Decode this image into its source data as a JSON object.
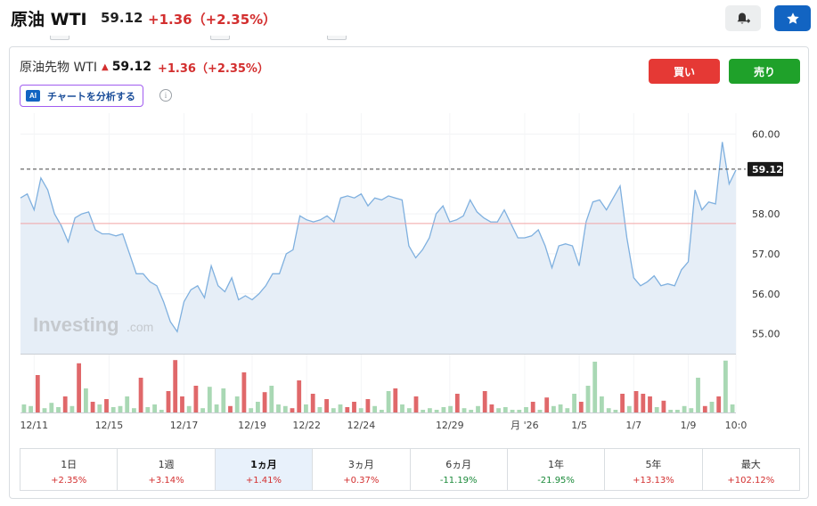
{
  "header": {
    "title": "原油 WTI",
    "price": "59.12",
    "change": "+1.36（+2.35%）"
  },
  "card": {
    "instrument_name": "原油先物 WTI",
    "price": "59.12",
    "change": "+1.36（+2.35%）",
    "ai_badge": "AI",
    "ai_button_label": "チャートを分析する",
    "info_glyph": "i",
    "buy_label": "買い",
    "sell_label": "売り"
  },
  "icons": [
    "bell-plus-icon",
    "star-icon",
    "arrow-up-icon",
    "info-icon",
    "ai-icon"
  ],
  "colors": {
    "buy": "#e53935",
    "sell": "#1fa12a",
    "positive": "#d32f2f",
    "negative": "#1b8a3a",
    "accent": "#1264c2",
    "price_line": "#7fb0df",
    "area_fill": "#e6eef7",
    "volume_up": "#a9d8b4",
    "volume_down": "#e0686a"
  },
  "watermark": {
    "brand": "Investing",
    "suffix": ".com"
  },
  "periods": [
    {
      "label": "1日",
      "change": "+2.35%",
      "direction": "up",
      "active": false
    },
    {
      "label": "1週",
      "change": "+3.14%",
      "direction": "up",
      "active": false
    },
    {
      "label": "1ヵ月",
      "change": "+1.41%",
      "direction": "up",
      "active": true
    },
    {
      "label": "3ヵ月",
      "change": "+0.37%",
      "direction": "up",
      "active": false
    },
    {
      "label": "6ヵ月",
      "change": "-11.19%",
      "direction": "down",
      "active": false
    },
    {
      "label": "1年",
      "change": "-21.95%",
      "direction": "down",
      "active": false
    },
    {
      "label": "5年",
      "change": "+13.13%",
      "direction": "up",
      "active": false
    },
    {
      "label": "最大",
      "change": "+102.12%",
      "direction": "up",
      "active": false
    }
  ],
  "chart_data": {
    "type": "area",
    "x_tick_labels": [
      "12/11",
      "12/15",
      "12/17",
      "12/19",
      "12/22",
      "12/24",
      "12/29",
      "月 '26",
      "1/5",
      "1/7",
      "1/9",
      "10:0"
    ],
    "y_tick_labels": [
      "60.00",
      "59.12",
      "58.00",
      "57.00",
      "56.00",
      "55.00"
    ],
    "y_ticks": [
      60,
      58,
      57,
      56,
      55
    ],
    "ylim": [
      54.5,
      60.3
    ],
    "last_price": 59.12,
    "last_price_label": "59.12",
    "reference_price": 57.76,
    "grid": true,
    "series": [
      {
        "values": [
          58.4,
          58.5,
          58.1,
          58.9,
          58.6,
          58.0,
          57.7,
          57.3,
          57.9,
          58.0,
          58.05,
          57.6,
          57.5,
          57.5,
          57.45,
          57.5,
          57.0,
          56.5,
          56.5,
          56.3,
          56.2,
          55.8,
          55.3,
          55.05,
          55.8,
          56.1,
          56.2,
          55.9,
          56.7,
          56.2,
          56.05,
          56.4,
          55.85,
          55.95,
          55.85,
          56.0,
          56.2,
          56.5,
          56.5,
          57.0,
          57.1,
          57.95,
          57.85,
          57.8,
          57.85,
          57.95,
          57.8,
          58.4,
          58.45,
          58.4,
          58.5,
          58.2,
          58.4,
          58.35,
          58.45,
          58.4,
          58.35,
          57.2,
          56.9,
          57.1,
          57.4,
          58.0,
          58.2,
          57.8,
          57.85,
          57.95,
          58.35,
          58.05,
          57.9,
          57.8,
          57.8,
          58.1,
          57.75,
          57.4,
          57.4,
          57.45,
          57.6,
          57.2,
          56.65,
          57.2,
          57.25,
          57.2,
          56.7,
          57.8,
          58.3,
          58.35,
          58.1,
          58.4,
          58.7,
          57.4,
          56.4,
          56.2,
          56.3,
          56.45,
          56.2,
          56.25,
          56.2,
          56.6,
          56.8,
          58.6,
          58.1,
          58.3,
          58.25,
          59.8,
          58.75,
          59.1
        ]
      }
    ],
    "volume": [
      {
        "v": 0.15,
        "dir": "up"
      },
      {
        "v": 0.12,
        "dir": "up"
      },
      {
        "v": 0.7,
        "dir": "down"
      },
      {
        "v": 0.08,
        "dir": "up"
      },
      {
        "v": 0.18,
        "dir": "up"
      },
      {
        "v": 0.1,
        "dir": "up"
      },
      {
        "v": 0.3,
        "dir": "down"
      },
      {
        "v": 0.12,
        "dir": "up"
      },
      {
        "v": 0.92,
        "dir": "down"
      },
      {
        "v": 0.45,
        "dir": "up"
      },
      {
        "v": 0.2,
        "dir": "down"
      },
      {
        "v": 0.15,
        "dir": "up"
      },
      {
        "v": 0.25,
        "dir": "down"
      },
      {
        "v": 0.1,
        "dir": "up"
      },
      {
        "v": 0.12,
        "dir": "up"
      },
      {
        "v": 0.3,
        "dir": "up"
      },
      {
        "v": 0.08,
        "dir": "up"
      },
      {
        "v": 0.65,
        "dir": "down"
      },
      {
        "v": 0.1,
        "dir": "up"
      },
      {
        "v": 0.15,
        "dir": "up"
      },
      {
        "v": 0.05,
        "dir": "up"
      },
      {
        "v": 0.4,
        "dir": "down"
      },
      {
        "v": 0.98,
        "dir": "down"
      },
      {
        "v": 0.3,
        "dir": "down"
      },
      {
        "v": 0.12,
        "dir": "up"
      },
      {
        "v": 0.5,
        "dir": "down"
      },
      {
        "v": 0.08,
        "dir": "up"
      },
      {
        "v": 0.48,
        "dir": "up"
      },
      {
        "v": 0.15,
        "dir": "up"
      },
      {
        "v": 0.45,
        "dir": "up"
      },
      {
        "v": 0.12,
        "dir": "down"
      },
      {
        "v": 0.3,
        "dir": "up"
      },
      {
        "v": 0.75,
        "dir": "down"
      },
      {
        "v": 0.08,
        "dir": "up"
      },
      {
        "v": 0.2,
        "dir": "up"
      },
      {
        "v": 0.38,
        "dir": "down"
      },
      {
        "v": 0.5,
        "dir": "up"
      },
      {
        "v": 0.15,
        "dir": "up"
      },
      {
        "v": 0.12,
        "dir": "up"
      },
      {
        "v": 0.08,
        "dir": "down"
      },
      {
        "v": 0.6,
        "dir": "down"
      },
      {
        "v": 0.15,
        "dir": "up"
      },
      {
        "v": 0.35,
        "dir": "down"
      },
      {
        "v": 0.1,
        "dir": "up"
      },
      {
        "v": 0.25,
        "dir": "down"
      },
      {
        "v": 0.08,
        "dir": "up"
      },
      {
        "v": 0.15,
        "dir": "up"
      },
      {
        "v": 0.1,
        "dir": "down"
      },
      {
        "v": 0.2,
        "dir": "down"
      },
      {
        "v": 0.08,
        "dir": "up"
      },
      {
        "v": 0.25,
        "dir": "down"
      },
      {
        "v": 0.12,
        "dir": "up"
      },
      {
        "v": 0.05,
        "dir": "up"
      },
      {
        "v": 0.4,
        "dir": "up"
      },
      {
        "v": 0.45,
        "dir": "down"
      },
      {
        "v": 0.15,
        "dir": "up"
      },
      {
        "v": 0.08,
        "dir": "up"
      },
      {
        "v": 0.3,
        "dir": "down"
      },
      {
        "v": 0.05,
        "dir": "up"
      },
      {
        "v": 0.08,
        "dir": "up"
      },
      {
        "v": 0.05,
        "dir": "up"
      },
      {
        "v": 0.1,
        "dir": "up"
      },
      {
        "v": 0.12,
        "dir": "up"
      },
      {
        "v": 0.35,
        "dir": "down"
      },
      {
        "v": 0.08,
        "dir": "up"
      },
      {
        "v": 0.05,
        "dir": "up"
      },
      {
        "v": 0.12,
        "dir": "up"
      },
      {
        "v": 0.4,
        "dir": "down"
      },
      {
        "v": 0.15,
        "dir": "down"
      },
      {
        "v": 0.08,
        "dir": "up"
      },
      {
        "v": 0.1,
        "dir": "up"
      },
      {
        "v": 0.05,
        "dir": "up"
      },
      {
        "v": 0.05,
        "dir": "up"
      },
      {
        "v": 0.1,
        "dir": "up"
      },
      {
        "v": 0.2,
        "dir": "down"
      },
      {
        "v": 0.05,
        "dir": "up"
      },
      {
        "v": 0.28,
        "dir": "down"
      },
      {
        "v": 0.12,
        "dir": "up"
      },
      {
        "v": 0.15,
        "dir": "up"
      },
      {
        "v": 0.08,
        "dir": "up"
      },
      {
        "v": 0.35,
        "dir": "up"
      },
      {
        "v": 0.2,
        "dir": "down"
      },
      {
        "v": 0.5,
        "dir": "up"
      },
      {
        "v": 0.95,
        "dir": "up"
      },
      {
        "v": 0.3,
        "dir": "up"
      },
      {
        "v": 0.08,
        "dir": "up"
      },
      {
        "v": 0.05,
        "dir": "up"
      },
      {
        "v": 0.35,
        "dir": "down"
      },
      {
        "v": 0.12,
        "dir": "up"
      },
      {
        "v": 0.4,
        "dir": "down"
      },
      {
        "v": 0.35,
        "dir": "down"
      },
      {
        "v": 0.3,
        "dir": "down"
      },
      {
        "v": 0.1,
        "dir": "up"
      },
      {
        "v": 0.22,
        "dir": "down"
      },
      {
        "v": 0.05,
        "dir": "up"
      },
      {
        "v": 0.05,
        "dir": "up"
      },
      {
        "v": 0.12,
        "dir": "up"
      },
      {
        "v": 0.08,
        "dir": "up"
      },
      {
        "v": 0.65,
        "dir": "up"
      },
      {
        "v": 0.12,
        "dir": "down"
      },
      {
        "v": 0.2,
        "dir": "up"
      },
      {
        "v": 0.3,
        "dir": "down"
      },
      {
        "v": 0.97,
        "dir": "up"
      },
      {
        "v": 0.15,
        "dir": "up"
      }
    ]
  }
}
